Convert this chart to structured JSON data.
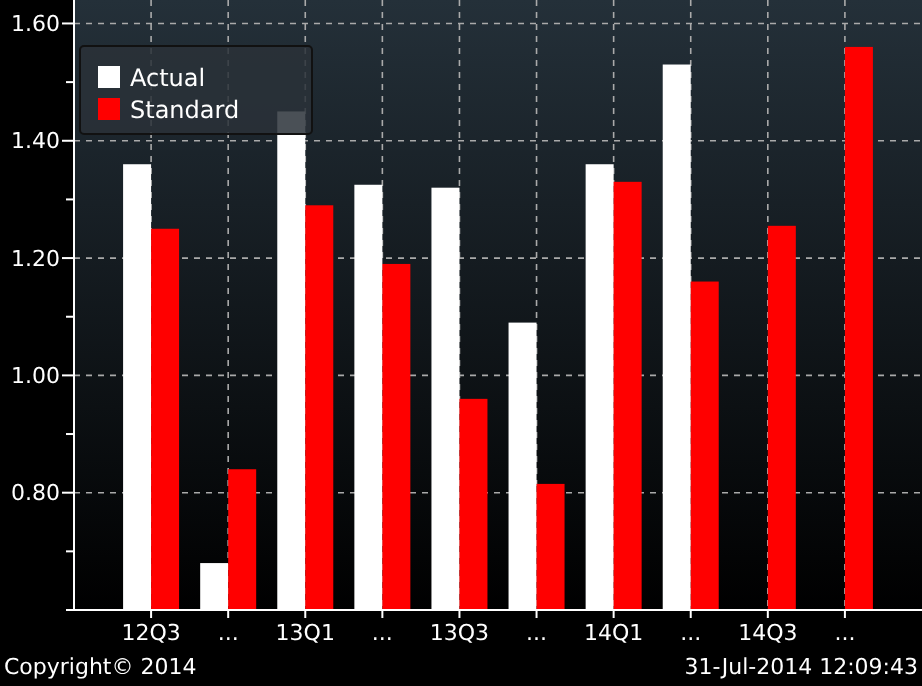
{
  "chart_data": {
    "type": "bar",
    "categories": [
      "12Q3",
      "...",
      "13Q1",
      "...",
      "13Q3",
      "...",
      "14Q1",
      "...",
      "14Q3",
      "..."
    ],
    "series": [
      {
        "name": "Actual",
        "color": "#ffffff",
        "values": [
          1.36,
          0.68,
          1.45,
          1.325,
          1.32,
          1.09,
          1.36,
          1.53,
          null,
          null
        ]
      },
      {
        "name": "Standard",
        "color": "#ff0000",
        "values": [
          1.25,
          0.84,
          1.29,
          1.19,
          0.96,
          0.815,
          1.33,
          1.16,
          1.255,
          1.56
        ]
      }
    ],
    "ylim": [
      0.6,
      1.64
    ],
    "yticks": [
      {
        "value": 0.6,
        "label": null
      },
      {
        "value": 0.7,
        "label": null
      },
      {
        "value": 0.8,
        "label": "0.80"
      },
      {
        "value": 0.9,
        "label": null
      },
      {
        "value": 1.0,
        "label": "1.00"
      },
      {
        "value": 1.1,
        "label": null
      },
      {
        "value": 1.2,
        "label": "1.20"
      },
      {
        "value": 1.3,
        "label": null
      },
      {
        "value": 1.4,
        "label": "1.40"
      },
      {
        "value": 1.5,
        "label": null
      },
      {
        "value": 1.6,
        "label": "1.60"
      }
    ],
    "grid": true,
    "legend": "top left",
    "annotations": [
      "Copyright© 2014",
      "31-Jul-2014 12:09:43"
    ]
  }
}
